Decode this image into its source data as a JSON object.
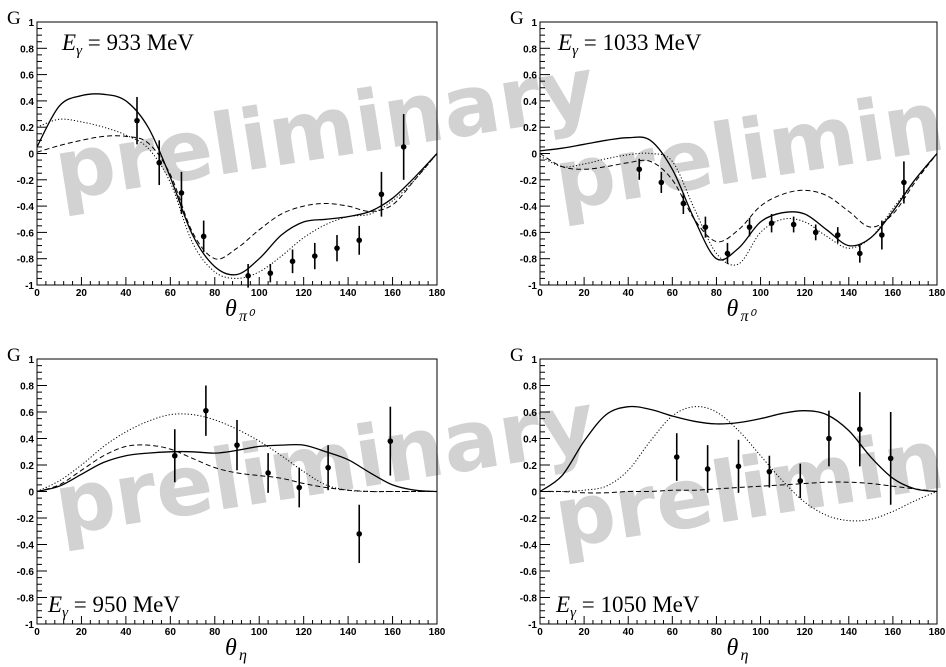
{
  "watermark": "preliminary",
  "chart_data": [
    {
      "type": "line",
      "annotation": {
        "symbol": "E",
        "subscript": "γ",
        "text": " = 933 MeV"
      },
      "ylabel": "G",
      "xlabel": {
        "symbol": "θ",
        "subscript": "π⁰"
      },
      "xlim": [
        0,
        180
      ],
      "ylim": [
        -1,
        1
      ],
      "xticks": [
        "0",
        "20",
        "40",
        "60",
        "80",
        "100",
        "120",
        "140",
        "160",
        "180"
      ],
      "yticks": [
        "-1",
        "-0.8",
        "-0.6",
        "-0.4",
        "-0.2",
        "0",
        "0.2",
        "0.4",
        "0.6",
        "0.8",
        "1"
      ],
      "series": [
        {
          "style": "solid",
          "x": [
            0,
            10,
            20,
            30,
            40,
            50,
            60,
            70,
            80,
            90,
            100,
            110,
            120,
            130,
            140,
            150,
            160,
            170,
            180
          ],
          "y": [
            0.05,
            0.36,
            0.44,
            0.45,
            0.4,
            0.2,
            -0.18,
            -0.62,
            -0.86,
            -0.92,
            -0.8,
            -0.62,
            -0.52,
            -0.5,
            -0.48,
            -0.44,
            -0.34,
            -0.18,
            0
          ]
        },
        {
          "style": "dashed",
          "x": [
            0,
            10,
            20,
            30,
            40,
            50,
            60,
            70,
            80,
            90,
            100,
            110,
            120,
            130,
            140,
            150,
            160,
            170,
            180
          ],
          "y": [
            0.01,
            0.06,
            0.1,
            0.13,
            0.13,
            0.08,
            -0.16,
            -0.6,
            -0.8,
            -0.72,
            -0.58,
            -0.46,
            -0.4,
            -0.38,
            -0.4,
            -0.44,
            -0.39,
            -0.2,
            0
          ]
        },
        {
          "style": "dotted",
          "x": [
            0,
            10,
            20,
            30,
            40,
            50,
            60,
            70,
            80,
            90,
            100,
            110,
            120,
            130,
            140,
            150,
            160,
            170,
            180
          ],
          "y": [
            0.2,
            0.26,
            0.24,
            0.2,
            0.14,
            0.04,
            -0.22,
            -0.68,
            -0.9,
            -0.95,
            -0.9,
            -0.78,
            -0.64,
            -0.54,
            -0.48,
            -0.46,
            -0.36,
            -0.2,
            0
          ]
        }
      ],
      "points": [
        {
          "x": 45,
          "y": 0.25,
          "err": 0.18
        },
        {
          "x": 55,
          "y": -0.07,
          "err": 0.17
        },
        {
          "x": 65,
          "y": -0.3,
          "err": 0.16
        },
        {
          "x": 75,
          "y": -0.63,
          "err": 0.12
        },
        {
          "x": 95,
          "y": -0.93,
          "err": 0.09
        },
        {
          "x": 105,
          "y": -0.91,
          "err": 0.07
        },
        {
          "x": 115,
          "y": -0.82,
          "err": 0.09
        },
        {
          "x": 125,
          "y": -0.78,
          "err": 0.1
        },
        {
          "x": 135,
          "y": -0.72,
          "err": 0.1
        },
        {
          "x": 145,
          "y": -0.66,
          "err": 0.11
        },
        {
          "x": 155,
          "y": -0.31,
          "err": 0.17
        },
        {
          "x": 165,
          "y": 0.05,
          "err": 0.25
        }
      ]
    },
    {
      "type": "line",
      "annotation": {
        "symbol": "E",
        "subscript": "γ",
        "text": " = 1033 MeV"
      },
      "ylabel": "G",
      "xlabel": {
        "symbol": "θ",
        "subscript": "π⁰"
      },
      "xlim": [
        0,
        180
      ],
      "ylim": [
        -1,
        1
      ],
      "xticks": [
        "0",
        "20",
        "40",
        "60",
        "80",
        "100",
        "120",
        "140",
        "160",
        "180"
      ],
      "yticks": [
        "-1",
        "-0.8",
        "-0.6",
        "-0.4",
        "-0.2",
        "0",
        "0.2",
        "0.4",
        "0.6",
        "0.8",
        "1"
      ],
      "series": [
        {
          "style": "solid",
          "x": [
            0,
            10,
            20,
            30,
            40,
            50,
            60,
            70,
            80,
            90,
            100,
            110,
            120,
            130,
            140,
            150,
            160,
            170,
            180
          ],
          "y": [
            0.02,
            0.04,
            0.07,
            0.1,
            0.12,
            0.1,
            -0.12,
            -0.5,
            -0.8,
            -0.72,
            -0.52,
            -0.45,
            -0.46,
            -0.58,
            -0.7,
            -0.64,
            -0.44,
            -0.2,
            0
          ]
        },
        {
          "style": "dashed",
          "x": [
            0,
            10,
            20,
            30,
            40,
            50,
            60,
            70,
            80,
            90,
            100,
            110,
            120,
            130,
            140,
            150,
            160,
            170,
            180
          ],
          "y": [
            0,
            -0.1,
            -0.12,
            -0.1,
            -0.07,
            -0.06,
            -0.2,
            -0.5,
            -0.67,
            -0.58,
            -0.4,
            -0.31,
            -0.28,
            -0.32,
            -0.44,
            -0.56,
            -0.46,
            -0.22,
            0
          ]
        },
        {
          "style": "dotted",
          "x": [
            0,
            10,
            20,
            30,
            40,
            50,
            60,
            70,
            80,
            90,
            100,
            110,
            120,
            130,
            140,
            150,
            160,
            170,
            180
          ],
          "y": [
            -0.02,
            -0.1,
            -0.08,
            -0.04,
            -0.01,
            0,
            -0.06,
            -0.42,
            -0.76,
            -0.84,
            -0.6,
            -0.5,
            -0.52,
            -0.63,
            -0.72,
            -0.64,
            -0.42,
            -0.2,
            0
          ]
        }
      ],
      "points": [
        {
          "x": 45,
          "y": -0.12,
          "err": 0.08
        },
        {
          "x": 55,
          "y": -0.22,
          "err": 0.08
        },
        {
          "x": 65,
          "y": -0.38,
          "err": 0.08
        },
        {
          "x": 75,
          "y": -0.56,
          "err": 0.08
        },
        {
          "x": 85,
          "y": -0.76,
          "err": 0.08
        },
        {
          "x": 95,
          "y": -0.56,
          "err": 0.07
        },
        {
          "x": 105,
          "y": -0.53,
          "err": 0.07
        },
        {
          "x": 115,
          "y": -0.54,
          "err": 0.06
        },
        {
          "x": 125,
          "y": -0.6,
          "err": 0.06
        },
        {
          "x": 135,
          "y": -0.62,
          "err": 0.06
        },
        {
          "x": 145,
          "y": -0.76,
          "err": 0.07
        },
        {
          "x": 155,
          "y": -0.62,
          "err": 0.11
        },
        {
          "x": 165,
          "y": -0.22,
          "err": 0.16
        }
      ]
    },
    {
      "type": "line",
      "annotation": {
        "symbol": "E",
        "subscript": "γ",
        "text": " = 950 MeV"
      },
      "ylabel": "G",
      "xlabel": {
        "symbol": "θ",
        "subscript": "η"
      },
      "xlim": [
        0,
        180
      ],
      "ylim": [
        -1,
        1
      ],
      "xticks": [
        "0",
        "20",
        "40",
        "60",
        "80",
        "100",
        "120",
        "140",
        "160",
        "180"
      ],
      "yticks": [
        "-1",
        "-0.8",
        "-0.6",
        "-0.4",
        "-0.2",
        "0",
        "0.2",
        "0.4",
        "0.6",
        "0.8",
        "1"
      ],
      "series": [
        {
          "style": "solid",
          "x": [
            0,
            10,
            20,
            30,
            40,
            50,
            60,
            70,
            80,
            90,
            100,
            110,
            120,
            130,
            140,
            150,
            160,
            170,
            180
          ],
          "y": [
            0,
            0.04,
            0.13,
            0.22,
            0.27,
            0.29,
            0.3,
            0.3,
            0.29,
            0.31,
            0.34,
            0.35,
            0.35,
            0.3,
            0.24,
            0.14,
            0.05,
            0.01,
            0
          ]
        },
        {
          "style": "dashed",
          "x": [
            0,
            10,
            20,
            30,
            40,
            50,
            60,
            70,
            80,
            90,
            100,
            110,
            120,
            130,
            140,
            150,
            160,
            170,
            180
          ],
          "y": [
            0,
            0.05,
            0.16,
            0.27,
            0.34,
            0.35,
            0.32,
            0.25,
            0.18,
            0.14,
            0.12,
            0.1,
            0.06,
            0.03,
            0.01,
            0,
            0,
            0,
            0
          ]
        },
        {
          "style": "dotted",
          "x": [
            0,
            10,
            20,
            30,
            40,
            50,
            60,
            70,
            80,
            90,
            100,
            110,
            120,
            130,
            140,
            150,
            160,
            170,
            180
          ],
          "y": [
            0,
            0.08,
            0.2,
            0.34,
            0.45,
            0.53,
            0.58,
            0.58,
            0.54,
            0.47,
            0.38,
            0.27,
            0.15,
            0.05,
            0.01,
            0,
            0,
            0,
            0
          ]
        }
      ],
      "points": [
        {
          "x": 62,
          "y": 0.27,
          "err": 0.2
        },
        {
          "x": 76,
          "y": 0.61,
          "err": 0.19
        },
        {
          "x": 90,
          "y": 0.35,
          "err": 0.19
        },
        {
          "x": 104,
          "y": 0.14,
          "err": 0.15
        },
        {
          "x": 118,
          "y": 0.03,
          "err": 0.15
        },
        {
          "x": 131,
          "y": 0.18,
          "err": 0.17
        },
        {
          "x": 145,
          "y": -0.32,
          "err": 0.22
        },
        {
          "x": 159,
          "y": 0.38,
          "err": 0.26
        }
      ]
    },
    {
      "type": "line",
      "annotation": {
        "symbol": "E",
        "subscript": "γ",
        "text": " = 1050 MeV"
      },
      "ylabel": "G",
      "xlabel": {
        "symbol": "θ",
        "subscript": "η"
      },
      "xlim": [
        0,
        180
      ],
      "ylim": [
        -1,
        1
      ],
      "xticks": [
        "0",
        "20",
        "40",
        "60",
        "80",
        "100",
        "120",
        "140",
        "160",
        "180"
      ],
      "yticks": [
        "-1",
        "-0.8",
        "-0.6",
        "-0.4",
        "-0.2",
        "0",
        "0.2",
        "0.4",
        "0.6",
        "0.8",
        "1"
      ],
      "series": [
        {
          "style": "solid",
          "x": [
            0,
            10,
            20,
            30,
            40,
            50,
            60,
            70,
            80,
            90,
            100,
            110,
            120,
            130,
            140,
            150,
            160,
            170,
            180
          ],
          "y": [
            0,
            0.12,
            0.38,
            0.58,
            0.64,
            0.62,
            0.57,
            0.53,
            0.51,
            0.52,
            0.55,
            0.59,
            0.61,
            0.58,
            0.46,
            0.26,
            0.1,
            0.02,
            0
          ]
        },
        {
          "style": "dashed",
          "x": [
            0,
            10,
            20,
            30,
            40,
            50,
            60,
            70,
            80,
            90,
            100,
            110,
            120,
            130,
            140,
            150,
            160,
            170,
            180
          ],
          "y": [
            0,
            0,
            -0.01,
            -0.01,
            0,
            0,
            0.01,
            0.01,
            0.02,
            0.03,
            0.04,
            0.05,
            0.06,
            0.07,
            0.07,
            0.06,
            0.04,
            0.02,
            0
          ]
        },
        {
          "style": "dotted",
          "x": [
            0,
            10,
            20,
            30,
            40,
            50,
            60,
            70,
            80,
            90,
            100,
            110,
            120,
            130,
            140,
            150,
            160,
            170,
            180
          ],
          "y": [
            0,
            0,
            0.01,
            0.04,
            0.16,
            0.38,
            0.57,
            0.64,
            0.6,
            0.46,
            0.27,
            0.08,
            -0.08,
            -0.18,
            -0.22,
            -0.21,
            -0.15,
            -0.07,
            0
          ]
        }
      ],
      "points": [
        {
          "x": 62,
          "y": 0.26,
          "err": 0.18
        },
        {
          "x": 76,
          "y": 0.17,
          "err": 0.18
        },
        {
          "x": 90,
          "y": 0.19,
          "err": 0.2
        },
        {
          "x": 104,
          "y": 0.15,
          "err": 0.12
        },
        {
          "x": 118,
          "y": 0.08,
          "err": 0.13
        },
        {
          "x": 131,
          "y": 0.4,
          "err": 0.21
        },
        {
          "x": 145,
          "y": 0.47,
          "err": 0.28
        },
        {
          "x": 159,
          "y": 0.25,
          "err": 0.35
        }
      ]
    }
  ]
}
